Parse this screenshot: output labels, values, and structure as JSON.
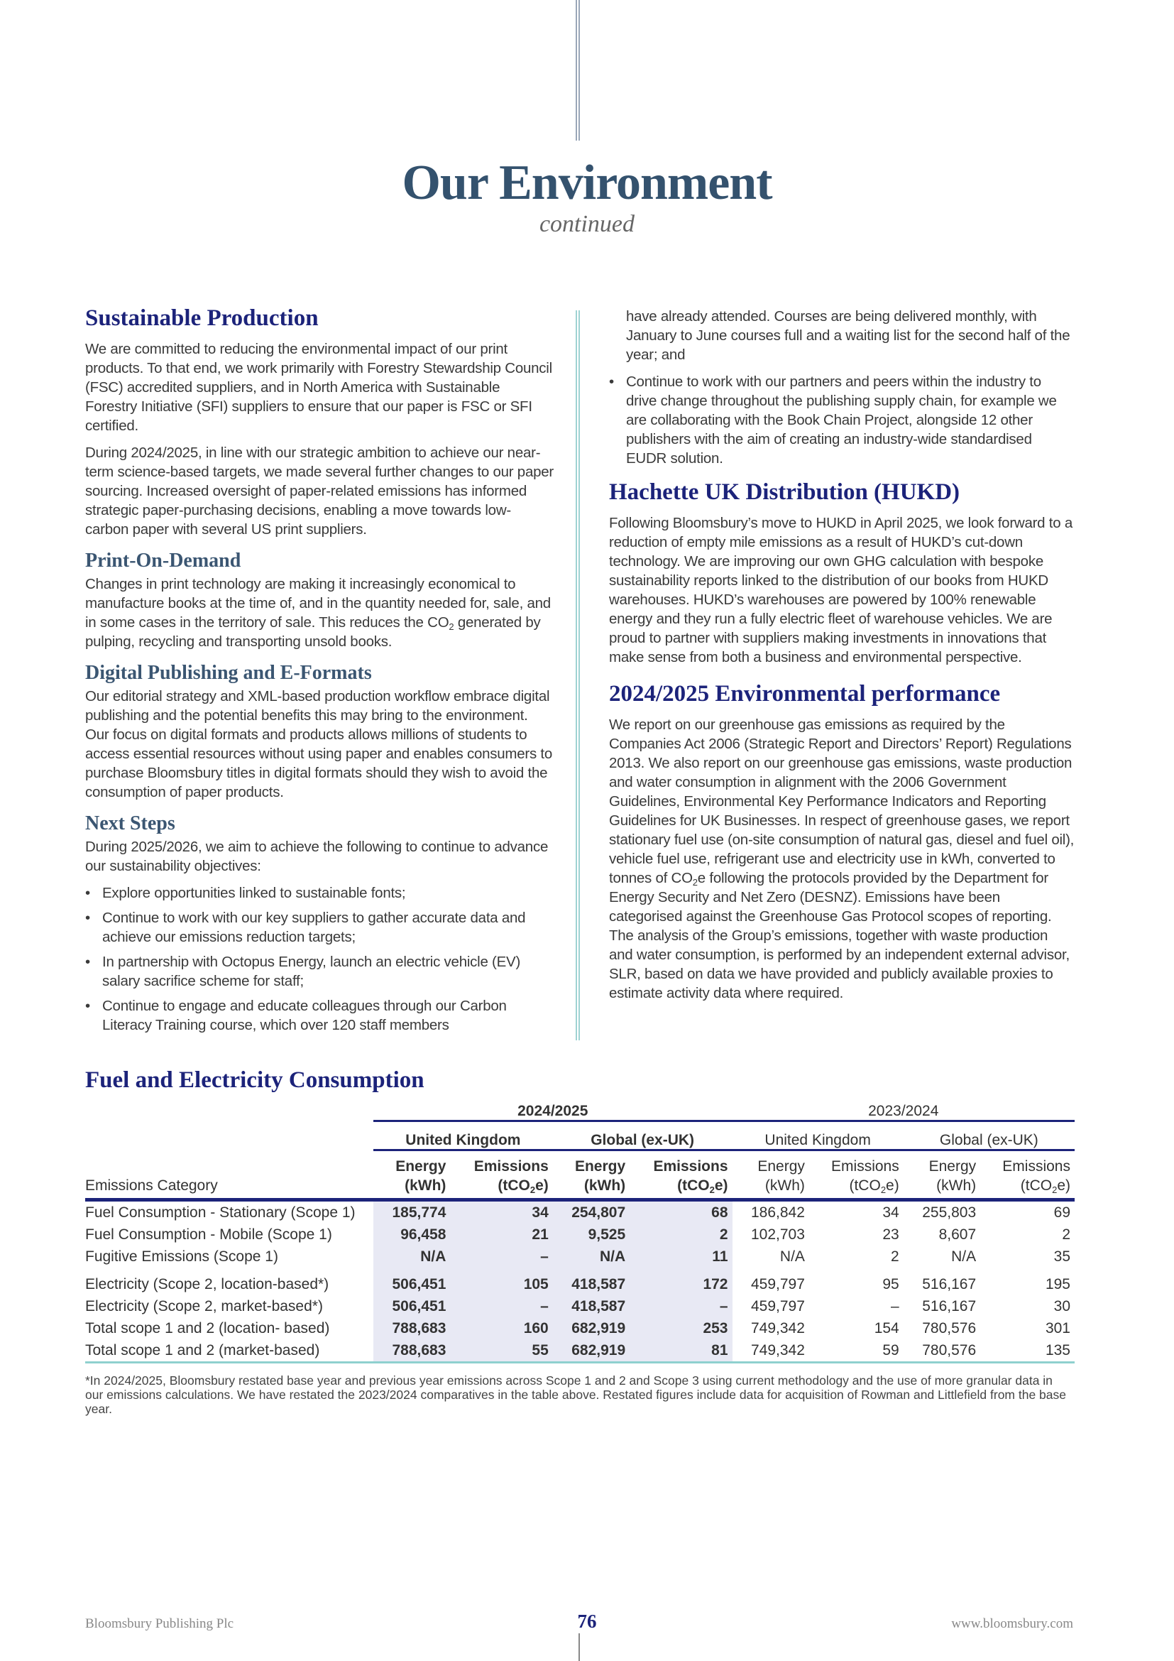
{
  "header": {
    "title": "Our Environment",
    "subtitle": "continued"
  },
  "left": {
    "sustainable": {
      "heading": "Sustainable Production",
      "p1": "We are committed to reducing the environmental impact of our print products. To that end, we work primarily with Forestry Stewardship Council (FSC) accredited suppliers, and in North America with Sustainable Forestry Initiative (SFI) suppliers to ensure that our paper is FSC or SFI certified.",
      "p2": "During 2024/2025, in line with our strategic ambition to achieve our near-term science-based targets, we made several further changes to our paper sourcing. Increased oversight of paper-related emissions has informed strategic paper-purchasing decisions, enabling a move towards low-carbon paper with several US print suppliers."
    },
    "pod": {
      "heading": "Print-On-Demand",
      "p1a": "Changes in print technology are making it increasingly economical to manufacture books at the time of, and in the quantity needed for, sale, and in some cases in the territory of sale. This reduces the CO",
      "p1sub": "2",
      "p1b": " generated by pulping, recycling and transporting unsold books."
    },
    "digital": {
      "heading": "Digital Publishing and E-Formats",
      "p1": "Our editorial strategy and XML-based production workflow embrace digital publishing and the potential benefits this may bring to the environment. Our focus on digital formats and products allows millions of students to access essential resources without using paper and enables consumers to purchase Bloomsbury titles in digital formats should they wish to avoid the consumption of paper products."
    },
    "next": {
      "heading": "Next Steps",
      "p1": "During 2025/2026, we aim to achieve the following to continue to advance our sustainability objectives:",
      "bullets": [
        "Explore opportunities linked to sustainable fonts;",
        "Continue to work with our key suppliers to gather accurate data and achieve our emissions reduction targets;",
        "In partnership with Octopus Energy, launch an electric vehicle (EV) salary sacrifice scheme for staff;",
        "Continue to engage and educate colleagues through our Carbon Literacy Training course, which over 120 staff members"
      ]
    }
  },
  "right": {
    "cont": "have already attended. Courses are being delivered monthly, with January to June courses full and a waiting list for the second half of the year; and",
    "bullet": "Continue to work with our partners and peers within the industry to drive change throughout the publishing supply chain, for example we are collaborating with the Book Chain Project, alongside 12 other publishers with the aim of creating an industry-wide standardised EUDR solution.",
    "hukd": {
      "heading": "Hachette UK Distribution (HUKD)",
      "p1": "Following Bloomsbury’s move to HUKD in April 2025, we look forward to a reduction of empty mile emissions as a result of HUKD’s cut-down technology. We are improving our own GHG calculation with bespoke sustainability reports linked to the distribution of our books from HUKD warehouses. HUKD’s warehouses are powered by 100% renewable energy and they run a fully electric fleet of warehouse vehicles. We are proud to partner with suppliers making investments in innovations that make sense from both a business and environmental perspective."
    },
    "perf": {
      "heading": "2024/2025 Environmental performance",
      "p1a": "We report on our greenhouse gas emissions as required by the Companies Act 2006 (Strategic Report and Directors’ Report) Regulations 2013. We also report on our greenhouse gas emissions, waste production and water consumption in alignment with the 2006 Government Guidelines, Environmental Key Performance Indicators and Reporting Guidelines for UK Businesses. In respect of greenhouse gases, we report stationary fuel use (on-site consumption of natural gas, diesel and fuel oil), vehicle fuel use, refrigerant use and electricity use in kWh, converted to tonnes of CO",
      "p1sub": "2",
      "p1b": "e following the protocols provided by the Department for Energy Security and Net Zero (DESNZ). Emissions have been categorised against the Greenhouse Gas Protocol scopes of reporting. The analysis of the Group’s emissions, together with waste production and water consumption, is performed by an independent external advisor, SLR, based on data we have provided and publicly available proxies to estimate activity data where required."
    }
  },
  "table": {
    "title": "Fuel and Electricity Consumption",
    "years": [
      "2024/2025",
      "2023/2024"
    ],
    "regions": [
      "United Kingdom",
      "Global (ex-UK)",
      "United Kingdom",
      "Global (ex-UK)"
    ],
    "category_header": "Emissions Category",
    "energy_label": "Energy",
    "energy_unit": "(kWh)",
    "emissions_label": "Emissions",
    "emissions_unit_a": "(tCO",
    "emissions_unit_sub": "2",
    "emissions_unit_b": "e)",
    "rows": [
      {
        "category": "Fuel Consumption - Stationary (Scope 1)",
        "values": [
          "185,774",
          "34",
          "254,807",
          "68",
          "186,842",
          "34",
          "255,803",
          "69"
        ]
      },
      {
        "category": "Fuel Consumption - Mobile (Scope 1)",
        "values": [
          "96,458",
          "21",
          "9,525",
          "2",
          "102,703",
          "23",
          "8,607",
          "2"
        ]
      },
      {
        "category": "Fugitive Emissions (Scope 1)",
        "values": [
          "N/A",
          "–",
          "N/A",
          "11",
          "N/A",
          "2",
          "N/A",
          "35"
        ]
      },
      {
        "category": "Electricity (Scope 2, location-based*)",
        "values": [
          "506,451",
          "105",
          "418,587",
          "172",
          "459,797",
          "95",
          "516,167",
          "195"
        ]
      },
      {
        "category": "Electricity (Scope 2, market-based*)",
        "values": [
          "506,451",
          "–",
          "418,587",
          "–",
          "459,797",
          "–",
          "516,167",
          "30"
        ]
      },
      {
        "category": "Total scope 1 and 2 (location- based)",
        "values": [
          "788,683",
          "160",
          "682,919",
          "253",
          "749,342",
          "154",
          "780,576",
          "301"
        ]
      },
      {
        "category": "Total scope 1 and 2 (market-based)",
        "values": [
          "788,683",
          "55",
          "682,919",
          "81",
          "749,342",
          "59",
          "780,576",
          "135"
        ]
      }
    ],
    "footnote": "*In 2024/2025, Bloomsbury restated base year and previous year emissions across Scope 1 and 2 and Scope 3 using current methodology and the use of more granular data in our emissions calculations. We have restated the 2023/2024 comparatives in the table above. Restated figures include data for acquisition of Rowman and Littlefield from the base year."
  },
  "footer": {
    "company": "Bloomsbury Publishing Plc",
    "page": "76",
    "url": "www.bloomsbury.com"
  },
  "colors": {
    "title": "#34526e",
    "heading": "#1c237a",
    "subheading": "#3b5672",
    "table_rule": "#1c237a",
    "accent_teal": "#8fd0cf",
    "shade": "#e8e9f4"
  }
}
